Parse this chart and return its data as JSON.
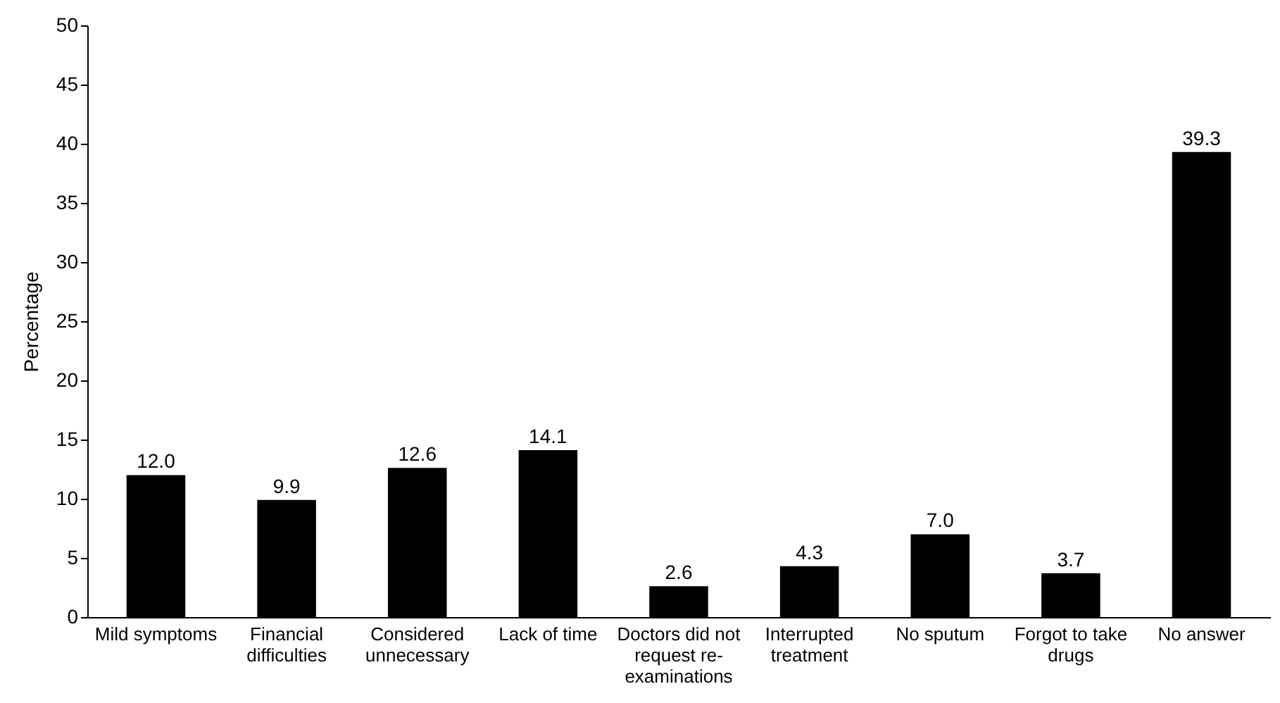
{
  "chart_data": {
    "type": "bar",
    "ylabel": "Percentage",
    "categories": [
      "Mild symptoms",
      "Financial difficulties",
      "Considered unnecessary",
      "Lack of time",
      "Doctors did not request re-examinations",
      "Interrupted treatment",
      "No sputum",
      "Forgot to take drugs",
      "No answer"
    ],
    "values": [
      12.0,
      9.9,
      12.6,
      14.1,
      2.6,
      4.3,
      7.0,
      3.7,
      39.3
    ],
    "value_labels": [
      "12.0",
      "9.9",
      "12.6",
      "14.1",
      "2.6",
      "4.3",
      "7.0",
      "3.7",
      "39.3"
    ],
    "color": "#000000",
    "ylim": [
      0,
      50
    ],
    "yticks": [
      0,
      5,
      10,
      15,
      20,
      25,
      30,
      35,
      40,
      45,
      50
    ],
    "grid": false
  }
}
